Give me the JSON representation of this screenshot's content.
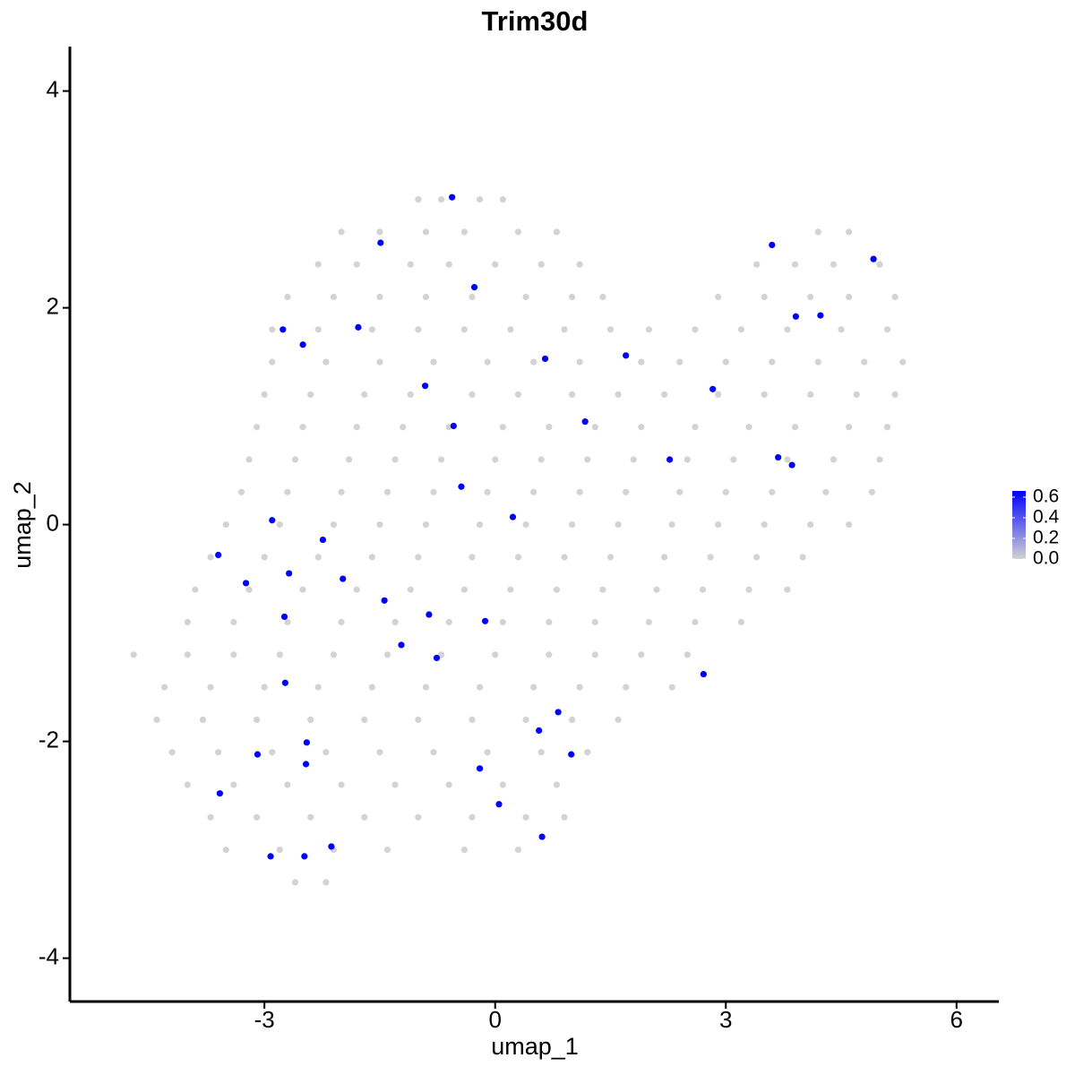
{
  "chart_data": {
    "type": "scatter",
    "title": "Trim30d",
    "xlabel": "umap_1",
    "ylabel": "umap_2",
    "xlim": [
      -5.53,
      6.55
    ],
    "ylim": [
      -4.4,
      4.41
    ],
    "xticks": [
      -3,
      0,
      3,
      6
    ],
    "yticks": [
      -4,
      -2,
      0,
      2,
      4
    ],
    "grid": false,
    "colorscale": [
      "#d3d3d3",
      "#0000ff"
    ],
    "clim": [
      0,
      0.66
    ],
    "colorbar_ticks": [
      {
        "value": 0,
        "label": "0.0"
      },
      0.2,
      0.4,
      0.6
    ],
    "series": [
      {
        "color": "#d3d3d3",
        "x": [
          -1.0,
          -0.7,
          -0.2,
          0.1,
          -2.0,
          -1.5,
          -0.9,
          -0.4,
          0.3,
          0.8,
          4.2,
          4.6,
          -2.3,
          -1.8,
          -1.1,
          -0.6,
          0.0,
          0.6,
          1.1,
          3.4,
          3.9,
          4.4,
          5.0,
          -2.7,
          -2.1,
          -1.5,
          -0.9,
          -0.3,
          0.4,
          1.0,
          1.4,
          2.9,
          3.5,
          4.1,
          4.6,
          5.2,
          -2.9,
          -2.3,
          -1.6,
          -1.0,
          -0.4,
          0.2,
          0.9,
          1.5,
          2.0,
          2.6,
          3.2,
          3.8,
          4.5,
          5.1,
          -2.9,
          -2.2,
          -1.5,
          -0.8,
          -0.1,
          0.5,
          1.1,
          1.9,
          2.4,
          3.0,
          3.6,
          4.2,
          4.8,
          5.3,
          -3.0,
          -2.4,
          -1.7,
          -1.1,
          -0.3,
          0.3,
          1.0,
          1.6,
          2.2,
          2.9,
          3.5,
          4.1,
          4.7,
          5.2,
          -3.1,
          -2.5,
          -1.8,
          -1.2,
          -0.6,
          0.1,
          0.7,
          1.3,
          1.9,
          2.6,
          3.3,
          3.9,
          4.6,
          5.1,
          -3.2,
          -2.6,
          -1.9,
          -1.3,
          -0.7,
          0.0,
          0.6,
          1.2,
          1.8,
          2.5,
          3.1,
          3.8,
          4.4,
          5.0,
          -3.3,
          -2.7,
          -2.0,
          -1.4,
          -0.8,
          -0.1,
          0.5,
          1.1,
          1.7,
          2.4,
          3.0,
          3.6,
          4.3,
          4.9,
          -3.5,
          -2.8,
          -2.1,
          -1.5,
          -0.9,
          -0.2,
          0.4,
          1.0,
          1.6,
          2.3,
          2.9,
          3.5,
          4.1,
          4.6,
          -3.7,
          -3.0,
          -2.3,
          -1.6,
          -1.0,
          -0.3,
          0.3,
          0.9,
          1.5,
          2.2,
          2.8,
          3.4,
          4.0,
          -3.9,
          -3.2,
          -2.5,
          -1.8,
          -1.1,
          -0.4,
          0.2,
          0.8,
          1.4,
          2.1,
          2.7,
          3.3,
          3.8,
          -4.0,
          -3.4,
          -2.7,
          -2.0,
          -1.3,
          -0.6,
          0.1,
          0.7,
          1.3,
          2.0,
          2.6,
          3.2,
          -4.7,
          -4.0,
          -3.4,
          -2.8,
          -2.1,
          -1.4,
          -0.7,
          0.0,
          0.7,
          1.3,
          1.9,
          2.5,
          -4.3,
          -3.7,
          -3.0,
          -2.3,
          -1.6,
          -0.9,
          -0.2,
          0.5,
          1.1,
          1.7,
          2.3,
          -4.4,
          -3.8,
          -3.1,
          -2.4,
          -1.7,
          -1.0,
          -0.3,
          0.4,
          1.0,
          1.6,
          -4.2,
          -3.6,
          -2.9,
          -2.2,
          -1.5,
          -0.8,
          -0.1,
          0.6,
          1.2,
          -4.0,
          -3.4,
          -2.7,
          -2.0,
          -1.3,
          -0.6,
          0.1,
          0.8,
          -3.7,
          -3.1,
          -2.4,
          -1.7,
          -1.0,
          -0.3,
          0.4,
          0.9,
          -3.5,
          -2.8,
          -2.1,
          -1.4,
          -0.4,
          0.3,
          -2.6,
          -2.2
        ],
        "y": [
          3.0,
          3.0,
          3.0,
          3.0,
          2.7,
          2.7,
          2.7,
          2.7,
          2.7,
          2.7,
          2.7,
          2.7,
          2.4,
          2.4,
          2.4,
          2.4,
          2.4,
          2.4,
          2.4,
          2.4,
          2.4,
          2.4,
          2.4,
          2.1,
          2.1,
          2.1,
          2.1,
          2.1,
          2.1,
          2.1,
          2.1,
          2.1,
          2.1,
          2.1,
          2.1,
          2.1,
          1.8,
          1.8,
          1.8,
          1.8,
          1.8,
          1.8,
          1.8,
          1.8,
          1.8,
          1.8,
          1.8,
          1.8,
          1.8,
          1.8,
          1.5,
          1.5,
          1.5,
          1.5,
          1.5,
          1.5,
          1.5,
          1.5,
          1.5,
          1.5,
          1.5,
          1.5,
          1.5,
          1.5,
          1.2,
          1.2,
          1.2,
          1.2,
          1.2,
          1.2,
          1.2,
          1.2,
          1.2,
          1.2,
          1.2,
          1.2,
          1.2,
          1.2,
          0.9,
          0.9,
          0.9,
          0.9,
          0.9,
          0.9,
          0.9,
          0.9,
          0.9,
          0.9,
          0.9,
          0.9,
          0.9,
          0.9,
          0.6,
          0.6,
          0.6,
          0.6,
          0.6,
          0.6,
          0.6,
          0.6,
          0.6,
          0.6,
          0.6,
          0.6,
          0.6,
          0.6,
          0.3,
          0.3,
          0.3,
          0.3,
          0.3,
          0.3,
          0.3,
          0.3,
          0.3,
          0.3,
          0.3,
          0.3,
          0.3,
          0.3,
          0.0,
          0.0,
          0.0,
          0.0,
          0.0,
          0.0,
          0.0,
          0.0,
          0.0,
          0.0,
          0.0,
          0.0,
          0.0,
          0.0,
          -0.3,
          -0.3,
          -0.3,
          -0.3,
          -0.3,
          -0.3,
          -0.3,
          -0.3,
          -0.3,
          -0.3,
          -0.3,
          -0.3,
          -0.3,
          -0.6,
          -0.6,
          -0.6,
          -0.6,
          -0.6,
          -0.6,
          -0.6,
          -0.6,
          -0.6,
          -0.6,
          -0.6,
          -0.6,
          -0.6,
          -0.9,
          -0.9,
          -0.9,
          -0.9,
          -0.9,
          -0.9,
          -0.9,
          -0.9,
          -0.9,
          -0.9,
          -0.9,
          -0.9,
          -1.2,
          -1.2,
          -1.2,
          -1.2,
          -1.2,
          -1.2,
          -1.2,
          -1.2,
          -1.2,
          -1.2,
          -1.2,
          -1.2,
          -1.5,
          -1.5,
          -1.5,
          -1.5,
          -1.5,
          -1.5,
          -1.5,
          -1.5,
          -1.5,
          -1.5,
          -1.5,
          -1.8,
          -1.8,
          -1.8,
          -1.8,
          -1.8,
          -1.8,
          -1.8,
          -1.8,
          -1.8,
          -1.8,
          -2.1,
          -2.1,
          -2.1,
          -2.1,
          -2.1,
          -2.1,
          -2.1,
          -2.1,
          -2.1,
          -2.4,
          -2.4,
          -2.4,
          -2.4,
          -2.4,
          -2.4,
          -2.4,
          -2.4,
          -2.7,
          -2.7,
          -2.7,
          -2.7,
          -2.7,
          -2.7,
          -2.7,
          -2.7,
          -3.0,
          -3.0,
          -3.0,
          -3.0,
          -3.0,
          -3.0,
          -3.3,
          -3.3
        ]
      },
      {
        "color": "#0000ff",
        "x": [
          -0.56,
          -1.49,
          -0.27,
          -2.76,
          -2.5,
          -1.78,
          0.65,
          1.7,
          -0.91,
          -0.54,
          1.17,
          2.83,
          3.6,
          4.92,
          3.91,
          4.23,
          2.27,
          3.68,
          3.86,
          -0.44,
          0.23,
          -2.9,
          -2.24,
          -3.6,
          -3.24,
          -2.68,
          -1.98,
          -1.44,
          -2.74,
          -0.86,
          -0.13,
          -1.22,
          -0.76,
          -2.73,
          2.71,
          0.82,
          0.57,
          0.99,
          -3.09,
          -2.45,
          -2.46,
          -0.2,
          -3.58,
          0.05,
          0.61,
          -2.13,
          -2.92,
          -2.48
        ],
        "y": [
          3.02,
          2.6,
          2.19,
          1.8,
          1.66,
          1.82,
          1.53,
          1.56,
          1.28,
          0.91,
          0.95,
          1.25,
          2.58,
          2.45,
          1.92,
          1.93,
          0.6,
          0.62,
          0.55,
          0.35,
          0.07,
          0.04,
          -0.14,
          -0.28,
          -0.54,
          -0.45,
          -0.5,
          -0.7,
          -0.85,
          -0.83,
          -0.89,
          -1.11,
          -1.23,
          -1.46,
          -1.38,
          -1.73,
          -1.9,
          -2.12,
          -2.12,
          -2.01,
          -2.21,
          -2.25,
          -2.48,
          -2.58,
          -2.88,
          -2.97,
          -3.06,
          -3.06
        ]
      }
    ]
  }
}
